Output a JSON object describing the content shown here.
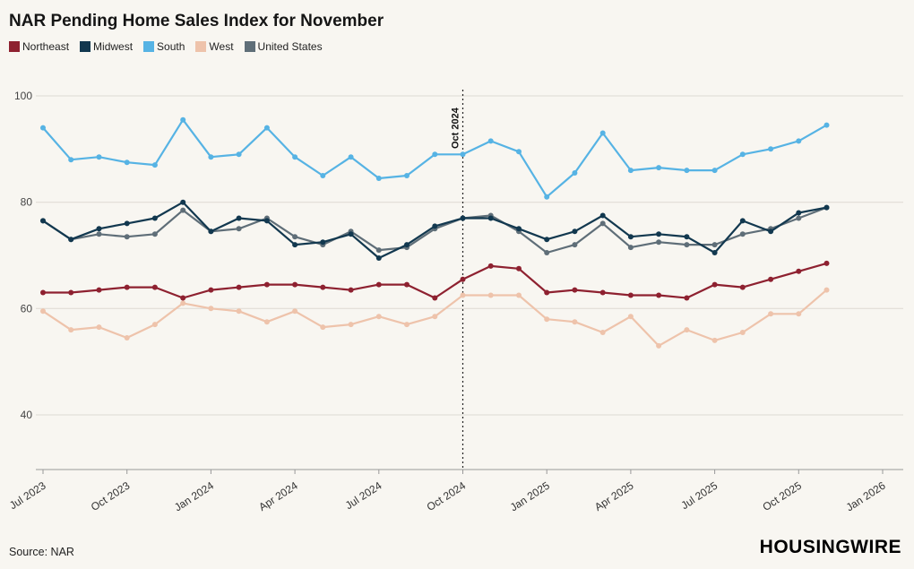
{
  "page": {
    "title": "NAR Pending Home Sales Index for November",
    "source": "Source: NAR",
    "brand": "HOUSINGWIRE"
  },
  "chart_data": {
    "type": "line",
    "title": "NAR Pending Home Sales Index for November",
    "x": [
      "Jul 2023",
      "Aug 2023",
      "Sep 2023",
      "Oct 2023",
      "Nov 2023",
      "Dec 2023",
      "Jan 2024",
      "Feb 2024",
      "Mar 2024",
      "Apr 2024",
      "May 2024",
      "Jun 2024",
      "Jul 2024",
      "Aug 2024",
      "Sep 2024",
      "Oct 2024",
      "Nov 2024",
      "Dec 2024",
      "Jan 2025",
      "Feb 2025",
      "Mar 2025",
      "Apr 2025",
      "May 2025",
      "Jun 2025",
      "Jul 2025",
      "Aug 2025",
      "Sep 2025",
      "Oct 2025",
      "Nov 2025"
    ],
    "x_tick_labels": [
      "Jul 2023",
      "Oct 2023",
      "Jan 2024",
      "Apr 2024",
      "Jul 2024",
      "Oct 2024",
      "Jan 2025",
      "Apr 2025",
      "Jul 2025",
      "Oct 2025",
      "Jan 2026"
    ],
    "x_tick_indices": [
      0,
      3,
      6,
      9,
      12,
      15,
      18,
      21,
      24,
      27,
      30
    ],
    "yticks": [
      40,
      60,
      80,
      100
    ],
    "ylim": [
      30,
      100
    ],
    "grid": true,
    "legend_position": "top-left",
    "annotation": {
      "label": "Oct 2024",
      "x": "Oct 2024",
      "x_index": 15
    },
    "series": [
      {
        "name": "Northeast",
        "color": "#8e2130",
        "values": [
          63,
          63,
          63.5,
          64,
          64,
          62,
          63.5,
          64,
          64.5,
          64.5,
          64,
          63.5,
          64.5,
          64.5,
          62,
          65.5,
          68,
          67.5,
          63,
          63.5,
          63,
          62.5,
          62.5,
          62,
          64.5,
          64,
          65.5,
          67,
          68.5
        ]
      },
      {
        "name": "Midwest",
        "color": "#12384f",
        "values": [
          76.5,
          73,
          75,
          76,
          77,
          80,
          74.5,
          77,
          76.5,
          72,
          72.5,
          74,
          69.5,
          72,
          75.5,
          77,
          77,
          75,
          73,
          74.5,
          77.5,
          73.5,
          74,
          73.5,
          70.5,
          76.5,
          74.5,
          78,
          79
        ]
      },
      {
        "name": "South",
        "color": "#56b3e4",
        "values": [
          94,
          88,
          88.5,
          87.5,
          87,
          95.5,
          88.5,
          89,
          94,
          88.5,
          85,
          88.5,
          84.5,
          85,
          89,
          89,
          91.5,
          89.5,
          81,
          85.5,
          93,
          86,
          86.5,
          86,
          86,
          89,
          90,
          91.5,
          94.5
        ]
      },
      {
        "name": "West",
        "color": "#eec3ab",
        "values": [
          59.5,
          56,
          56.5,
          54.5,
          57,
          61,
          60,
          59.5,
          57.5,
          59.5,
          56.5,
          57,
          58.5,
          57,
          58.5,
          62.5,
          62.5,
          62.5,
          58,
          57.5,
          55.5,
          58.5,
          53,
          56,
          54,
          55.5,
          59,
          59,
          63.5
        ]
      },
      {
        "name": "United States",
        "color": "#5f6e78",
        "values": [
          76.5,
          73,
          74,
          73.5,
          74,
          78.5,
          74.5,
          75,
          77,
          73.5,
          72,
          74.5,
          71,
          71.5,
          75,
          77,
          77.5,
          74.5,
          70.5,
          72,
          76,
          71.5,
          72.5,
          72,
          72,
          74,
          75,
          77,
          79
        ]
      }
    ]
  }
}
